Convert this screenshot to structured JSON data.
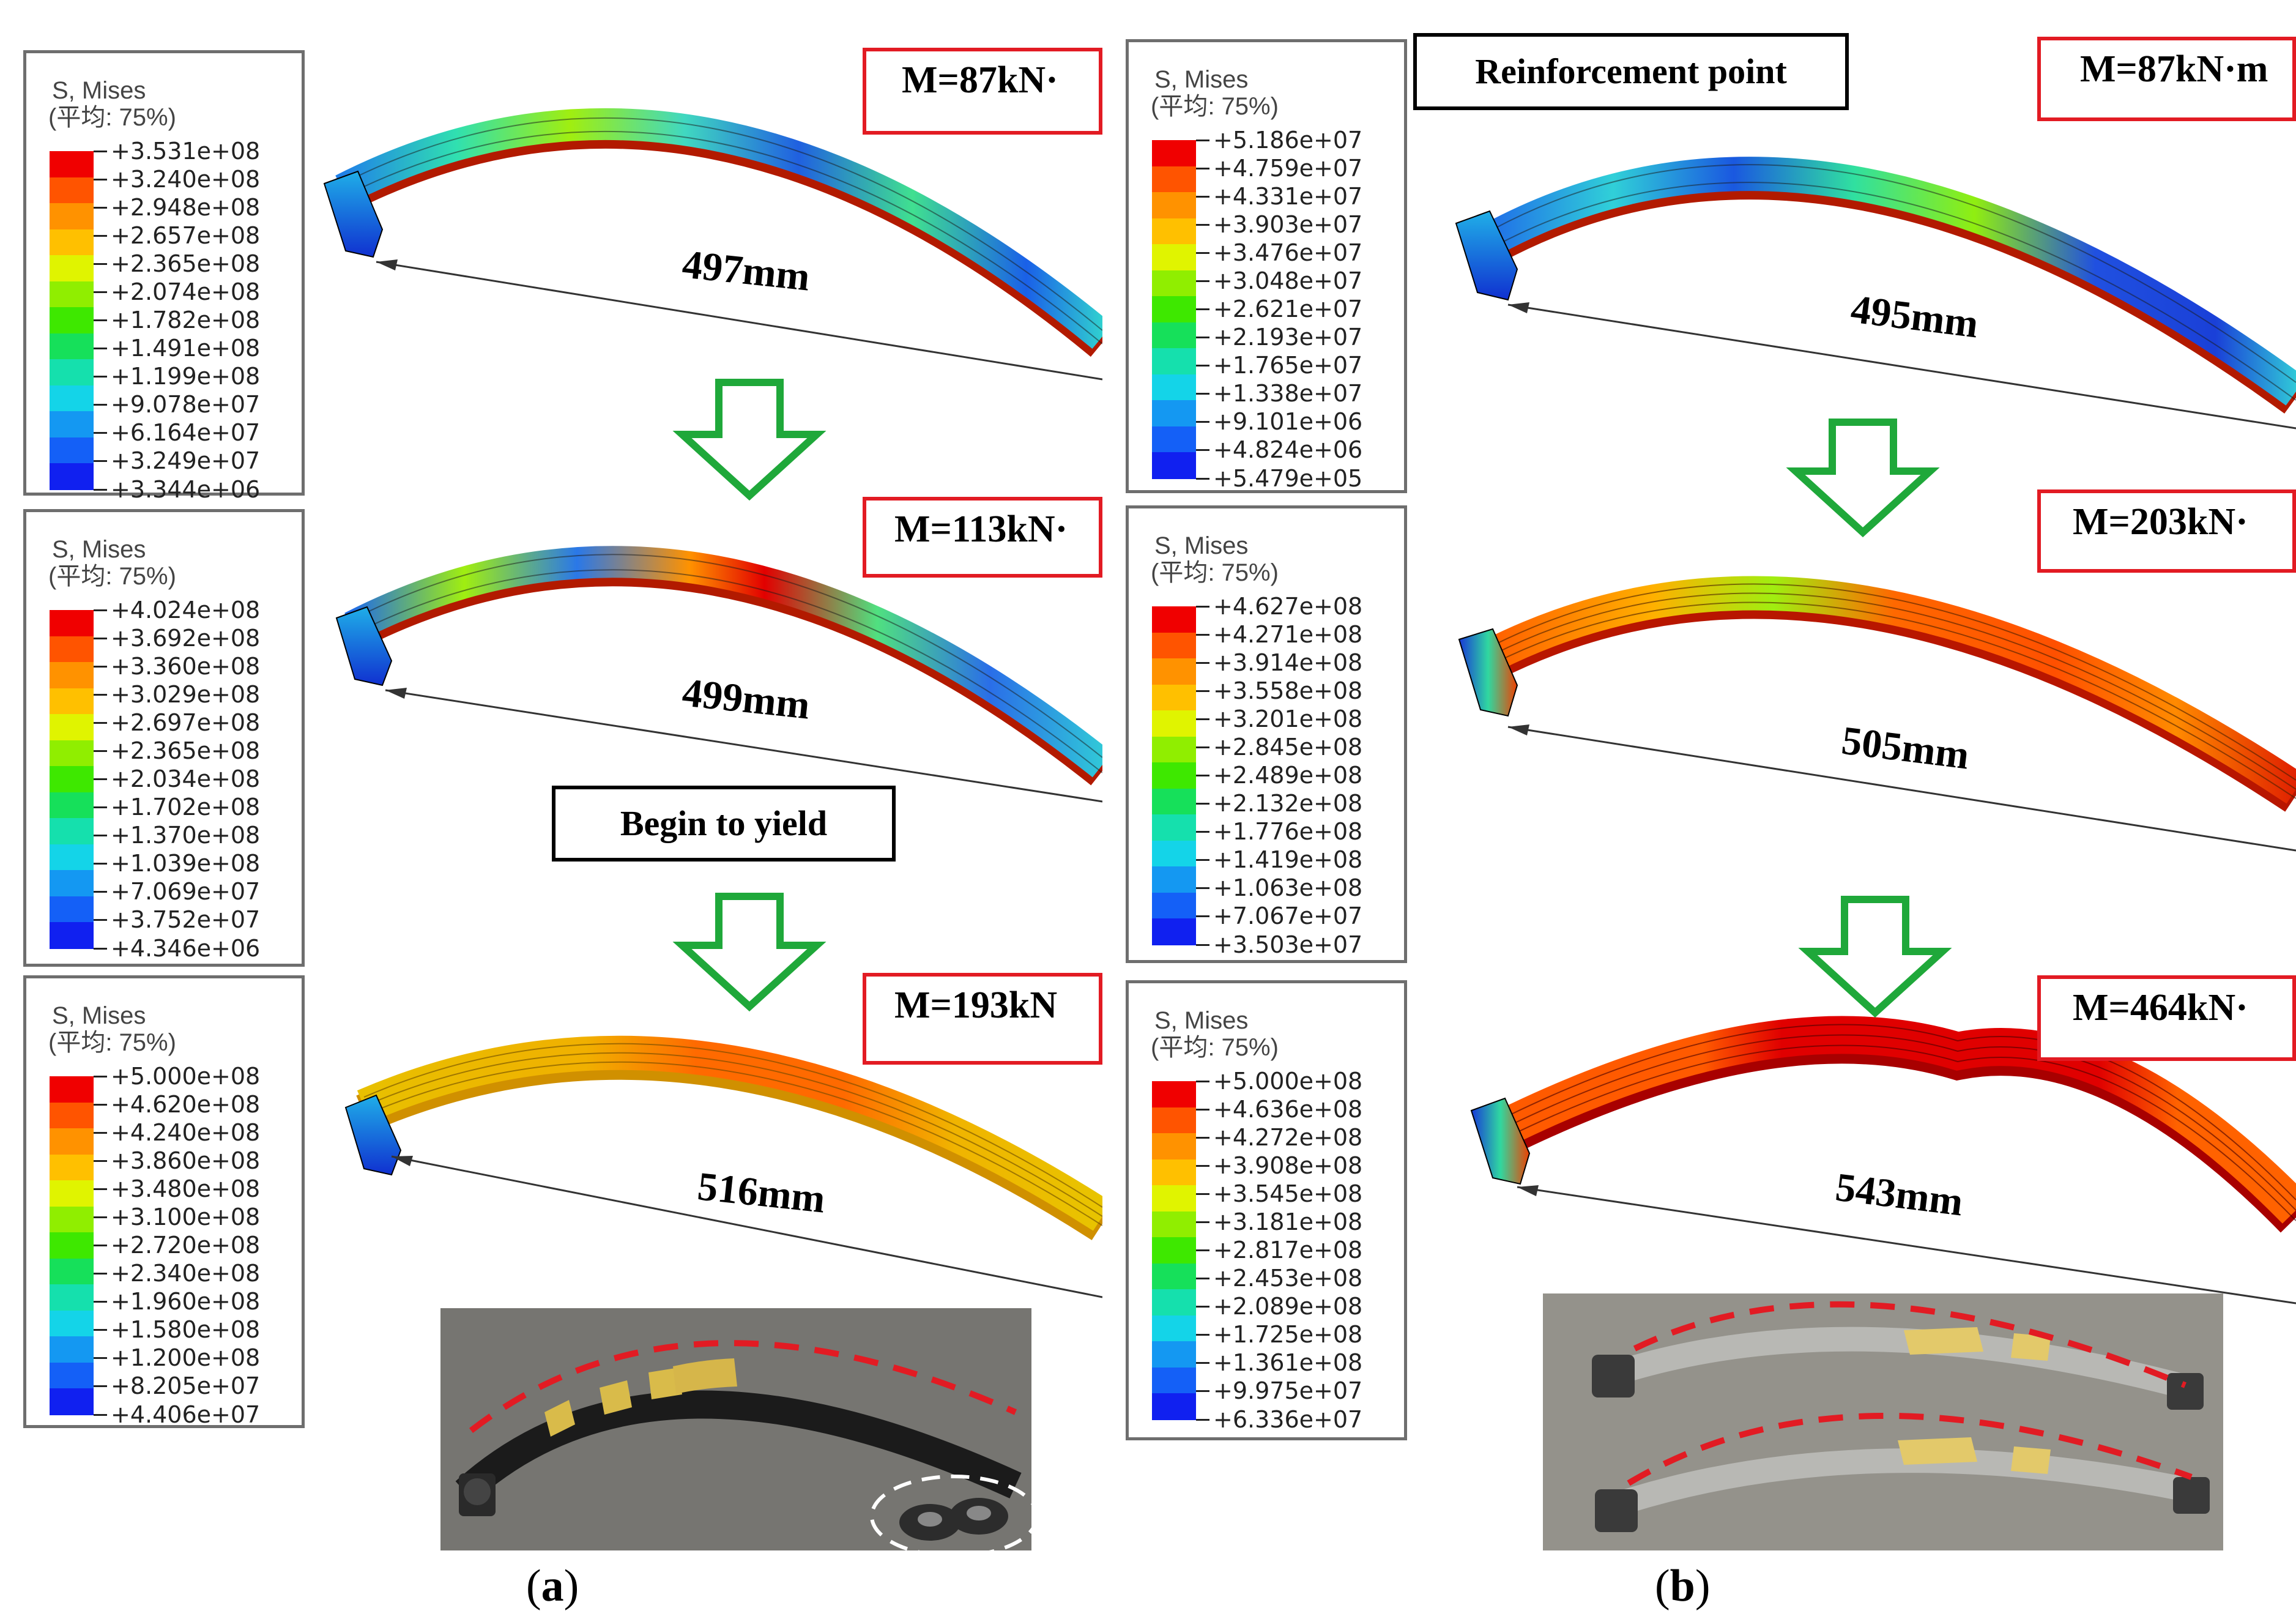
{
  "legend_title": "S, Mises",
  "legend_subtitle": "(平均: 75%)",
  "legend_colors": [
    "#f00000",
    "#ff5400",
    "#ff9200",
    "#ffc000",
    "#e0f400",
    "#90ee00",
    "#3ee800",
    "#16e05a",
    "#15e0ad",
    "#14d4e8",
    "#1498f2",
    "#1460f7",
    "#1020f0"
  ],
  "legends": [
    {
      "id": "a1",
      "values": [
        "+3.531e+08",
        "+3.240e+08",
        "+2.948e+08",
        "+2.657e+08",
        "+2.365e+08",
        "+2.074e+08",
        "+1.782e+08",
        "+1.491e+08",
        "+1.199e+08",
        "+9.078e+07",
        "+6.164e+07",
        "+3.249e+07",
        "+3.344e+06"
      ]
    },
    {
      "id": "a2",
      "values": [
        "+4.024e+08",
        "+3.692e+08",
        "+3.360e+08",
        "+3.029e+08",
        "+2.697e+08",
        "+2.365e+08",
        "+2.034e+08",
        "+1.702e+08",
        "+1.370e+08",
        "+1.039e+08",
        "+7.069e+07",
        "+3.752e+07",
        "+4.346e+06"
      ]
    },
    {
      "id": "a3",
      "values": [
        "+5.000e+08",
        "+4.620e+08",
        "+4.240e+08",
        "+3.860e+08",
        "+3.480e+08",
        "+3.100e+08",
        "+2.720e+08",
        "+2.340e+08",
        "+1.960e+08",
        "+1.580e+08",
        "+1.200e+08",
        "+8.205e+07",
        "+4.406e+07"
      ]
    },
    {
      "id": "b1",
      "values": [
        "+5.186e+07",
        "+4.759e+07",
        "+4.331e+07",
        "+3.903e+07",
        "+3.476e+07",
        "+3.048e+07",
        "+2.621e+07",
        "+2.193e+07",
        "+1.765e+07",
        "+1.338e+07",
        "+9.101e+06",
        "+4.824e+06",
        "+5.479e+05"
      ]
    },
    {
      "id": "b2",
      "values": [
        "+4.627e+08",
        "+4.271e+08",
        "+3.914e+08",
        "+3.558e+08",
        "+3.201e+08",
        "+2.845e+08",
        "+2.489e+08",
        "+2.132e+08",
        "+1.776e+08",
        "+1.419e+08",
        "+1.063e+08",
        "+7.067e+07",
        "+3.503e+07"
      ]
    },
    {
      "id": "b3",
      "values": [
        "+5.000e+08",
        "+4.636e+08",
        "+4.272e+08",
        "+3.908e+08",
        "+3.545e+08",
        "+3.181e+08",
        "+2.817e+08",
        "+2.453e+08",
        "+2.089e+08",
        "+1.725e+08",
        "+1.361e+08",
        "+9.975e+07",
        "+6.336e+07"
      ]
    }
  ],
  "panel_a": {
    "moments": [
      "M=87kN·",
      "M=113kN·",
      "M=193kN"
    ],
    "distances": [
      "497mm",
      "499mm",
      "516mm"
    ],
    "annotation": "Begin to yield",
    "caption_open": "(",
    "caption_letter": "a",
    "caption_close": ")"
  },
  "panel_b": {
    "moments": [
      "M=87kN·m",
      "M=203kN·",
      "M=464kN·"
    ],
    "distances": [
      "495mm",
      "505mm",
      "543mm"
    ],
    "annotation": "Reinforcement point",
    "caption_open": "(",
    "caption_letter": "b",
    "caption_close": ")"
  },
  "colors": {
    "arrow": "#1fa83a",
    "moment_border": "#e21b23",
    "dashed_curve": "#e21b23"
  }
}
